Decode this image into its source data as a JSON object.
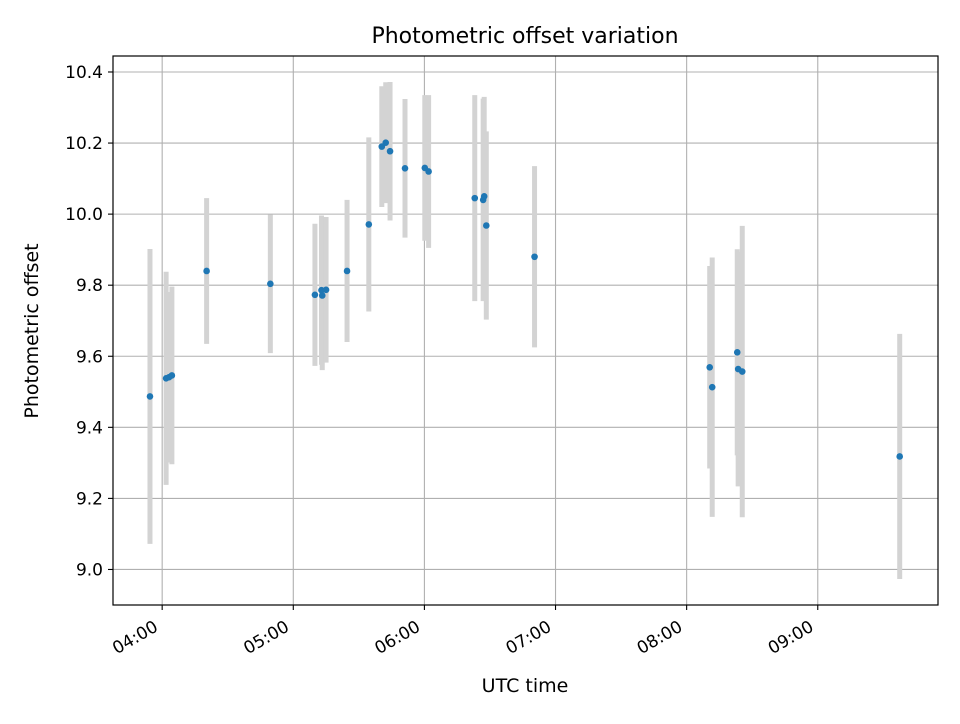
{
  "chart_data": {
    "type": "scatter",
    "title": "Photometric offset variation",
    "xlabel": "UTC time",
    "ylabel": "Photometric offset",
    "x_unit": "hour",
    "xlim": [
      3.625,
      9.917
    ],
    "ylim": [
      8.9,
      10.445
    ],
    "x_ticks": [
      4,
      5,
      6,
      7,
      8,
      9
    ],
    "x_tick_labels": [
      "04:00",
      "05:00",
      "06:00",
      "07:00",
      "08:00",
      "09:00"
    ],
    "y_ticks": [
      9.0,
      9.2,
      9.4,
      9.6,
      9.8,
      10.0,
      10.2,
      10.4
    ],
    "y_tick_labels": [
      "9.0",
      "9.2",
      "9.4",
      "9.6",
      "9.8",
      "10.0",
      "10.2",
      "10.4"
    ],
    "grid": true,
    "colors": {
      "point": "#1f77b4",
      "errorbar": "#d3d3d3",
      "grid": "#b0b0b0"
    },
    "points": [
      {
        "x": 3.907,
        "y": 9.487,
        "err": 0.415
      },
      {
        "x": 4.03,
        "y": 9.538,
        "err": 0.3
      },
      {
        "x": 4.053,
        "y": 9.541,
        "err": 0.24
      },
      {
        "x": 4.074,
        "y": 9.546,
        "err": 0.25
      },
      {
        "x": 4.339,
        "y": 9.84,
        "err": 0.205
      },
      {
        "x": 4.825,
        "y": 9.804,
        "err": 0.195
      },
      {
        "x": 5.165,
        "y": 9.773,
        "err": 0.2
      },
      {
        "x": 5.215,
        "y": 9.786,
        "err": 0.21
      },
      {
        "x": 5.221,
        "y": 9.771,
        "err": 0.21
      },
      {
        "x": 5.25,
        "y": 9.787,
        "err": 0.205
      },
      {
        "x": 5.41,
        "y": 9.84,
        "err": 0.2
      },
      {
        "x": 5.576,
        "y": 9.971,
        "err": 0.245
      },
      {
        "x": 5.675,
        "y": 10.19,
        "err": 0.17
      },
      {
        "x": 5.705,
        "y": 10.201,
        "err": 0.17
      },
      {
        "x": 5.738,
        "y": 10.177,
        "err": 0.195
      },
      {
        "x": 5.852,
        "y": 10.129,
        "err": 0.195
      },
      {
        "x": 6.003,
        "y": 10.13,
        "err": 0.205
      },
      {
        "x": 6.032,
        "y": 10.12,
        "err": 0.215
      },
      {
        "x": 6.384,
        "y": 10.045,
        "err": 0.29
      },
      {
        "x": 6.448,
        "y": 10.04,
        "err": 0.285
      },
      {
        "x": 6.456,
        "y": 10.05,
        "err": 0.28
      },
      {
        "x": 6.472,
        "y": 9.968,
        "err": 0.265
      },
      {
        "x": 6.84,
        "y": 9.88,
        "err": 0.255
      },
      {
        "x": 8.176,
        "y": 9.569,
        "err": 0.285
      },
      {
        "x": 8.195,
        "y": 9.513,
        "err": 0.365
      },
      {
        "x": 8.386,
        "y": 9.611,
        "err": 0.29
      },
      {
        "x": 8.393,
        "y": 9.564,
        "err": 0.33
      },
      {
        "x": 8.424,
        "y": 9.557,
        "err": 0.41
      },
      {
        "x": 9.625,
        "y": 9.318,
        "err": 0.345
      }
    ]
  }
}
